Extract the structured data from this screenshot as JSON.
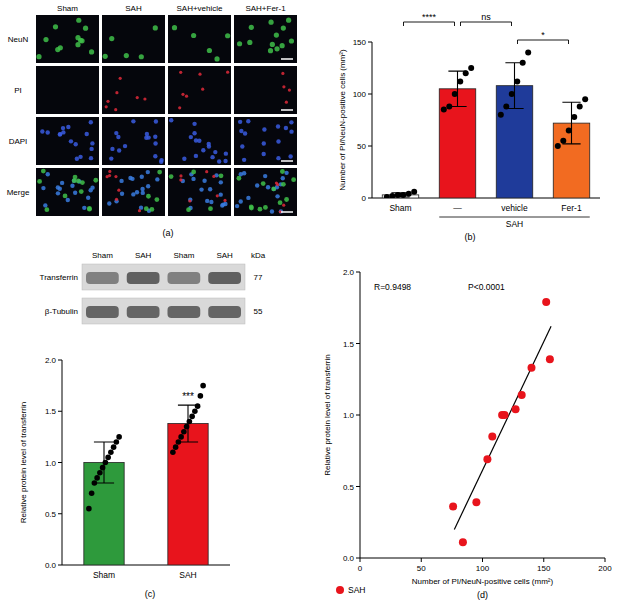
{
  "panel_a": {
    "label": "(a)",
    "columns": [
      "Sham",
      "SAH",
      "SAH+vehicle",
      "SAH+Fer-1"
    ],
    "rows": [
      "NeuN",
      "PI",
      "DAPI",
      "Merge"
    ]
  },
  "chart_data": [
    {
      "type": "bar",
      "panel_label": "(b)",
      "categories": [
        "Sham",
        "—",
        "vehicle",
        "Fer-1"
      ],
      "group_label": "SAH",
      "group_span": [
        1,
        3
      ],
      "values": [
        3,
        105,
        108,
        72
      ],
      "errors": [
        2,
        17,
        22,
        20
      ],
      "points": [
        [
          1,
          2,
          3,
          3,
          4,
          6
        ],
        [
          85,
          88,
          100,
          112,
          120,
          125
        ],
        [
          80,
          88,
          100,
          112,
          130,
          140
        ],
        [
          50,
          55,
          65,
          78,
          88,
          95
        ]
      ],
      "colors": [
        "#ffffff",
        "#e8141c",
        "#1f3b9a",
        "#f26b21"
      ],
      "y_label": "Number of PI/NeuN-positive cells (mm²)",
      "ylim": [
        0,
        150
      ],
      "yticks": [
        0,
        50,
        100,
        150
      ],
      "significance": [
        {
          "from": 0,
          "to": 1,
          "label": "****"
        },
        {
          "from": 1,
          "to": 2,
          "label": "ns"
        },
        {
          "from": 2,
          "to": 3,
          "label": "*"
        }
      ]
    },
    {
      "type": "bar",
      "panel_label": "(c)",
      "categories": [
        "Sham",
        "SAH"
      ],
      "values": [
        1.0,
        1.38
      ],
      "errors": [
        0.2,
        0.18
      ],
      "points": [
        [
          0.55,
          0.7,
          0.8,
          0.85,
          0.9,
          0.95,
          1.0,
          1.05,
          1.1,
          1.15,
          1.2,
          1.25
        ],
        [
          1.1,
          1.15,
          1.2,
          1.25,
          1.3,
          1.35,
          1.4,
          1.45,
          1.5,
          1.55,
          1.65,
          1.75
        ]
      ],
      "colors": [
        "#2e9a3c",
        "#e8141c"
      ],
      "y_label": "Relative protein level of transferrin",
      "ylim": [
        0,
        2
      ],
      "yticks": [
        {
          "value": 0,
          "label": "0.0"
        },
        {
          "value": 0.5,
          "label": "0.5"
        },
        {
          "value": 1,
          "label": "1.0"
        },
        {
          "value": 1.5,
          "label": "1.5"
        },
        {
          "value": 2,
          "label": "2.0"
        }
      ],
      "significance": [
        {
          "from": 1,
          "to": 1,
          "label": "***"
        }
      ],
      "blot": {
        "lanes": [
          "Sham",
          "SAH",
          "Sham",
          "SAH"
        ],
        "unit": "kDa",
        "bands": [
          {
            "name": "Transferrin",
            "kda": 77
          },
          {
            "name": "β-Tubulin",
            "kda": 55
          }
        ]
      }
    },
    {
      "type": "scatter",
      "panel_label": "(d)",
      "series": [
        {
          "name": "SAH",
          "color": "#e8141c",
          "marker": "circle",
          "x": [
            76,
            84,
            95,
            104,
            108,
            116,
            118,
            127,
            132,
            140,
            155,
            152
          ],
          "values": [
            0.36,
            0.11,
            0.39,
            0.69,
            0.85,
            1.0,
            1.0,
            1.04,
            1.14,
            1.33,
            1.39,
            1.79
          ]
        }
      ],
      "trend_line": {
        "x": [
          77,
          156
        ],
        "values": [
          0.2,
          1.62
        ]
      },
      "annotations": [
        "R=0.9498",
        "P<0.0001"
      ],
      "x_label": "Number of PI/NeuN-positive cells (mm²)",
      "y_label": "Relative protein level of transferrin",
      "xlim": [
        0,
        200
      ],
      "xticks": [
        0,
        50,
        100,
        150,
        200
      ],
      "ylim": [
        0,
        2
      ],
      "yticks": [
        {
          "value": 0,
          "label": "0.0"
        },
        {
          "value": 0.5,
          "label": "0.5"
        },
        {
          "value": 1,
          "label": "1.0"
        },
        {
          "value": 1.5,
          "label": "1.5"
        },
        {
          "value": 2,
          "label": "2.0"
        }
      ],
      "legend": "bottom-left"
    }
  ]
}
